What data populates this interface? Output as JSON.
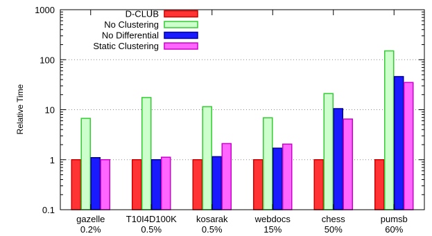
{
  "chart_data": {
    "type": "bar",
    "title": "",
    "xlabel": "",
    "ylabel": "Relative Time",
    "y_scale": "log",
    "ylim": [
      0.1,
      1000
    ],
    "y_ticks": [
      "0.1",
      "1",
      "10",
      "100",
      "1000"
    ],
    "grid": "horizontal dotted",
    "legend_position": "top-left",
    "categories": [
      {
        "name": "gazelle",
        "support": "0.2%"
      },
      {
        "name": "T10I4D100K",
        "support": "0.5%"
      },
      {
        "name": "kosarak",
        "support": "0.5%"
      },
      {
        "name": "webdocs",
        "support": "15%"
      },
      {
        "name": "chess",
        "support": "50%"
      },
      {
        "name": "pumsb",
        "support": "60%"
      }
    ],
    "series": [
      {
        "name": "D-CLUB",
        "fill": "#ff3333",
        "stroke": "#cc0000",
        "values": [
          1,
          1,
          1,
          1,
          1,
          1
        ]
      },
      {
        "name": "No Clustering",
        "fill": "#ccffcc",
        "stroke": "#33cc33",
        "values": [
          6.7,
          17.5,
          11.5,
          6.9,
          21,
          150
        ]
      },
      {
        "name": "No Differential",
        "fill": "#1a1aff",
        "stroke": "#000099",
        "values": [
          1.1,
          1.0,
          1.15,
          1.7,
          10.5,
          46
        ]
      },
      {
        "name": "Static Clustering",
        "fill": "#ff66ff",
        "stroke": "#cc00cc",
        "values": [
          1.0,
          1.12,
          2.1,
          2.05,
          6.5,
          35
        ]
      }
    ]
  }
}
